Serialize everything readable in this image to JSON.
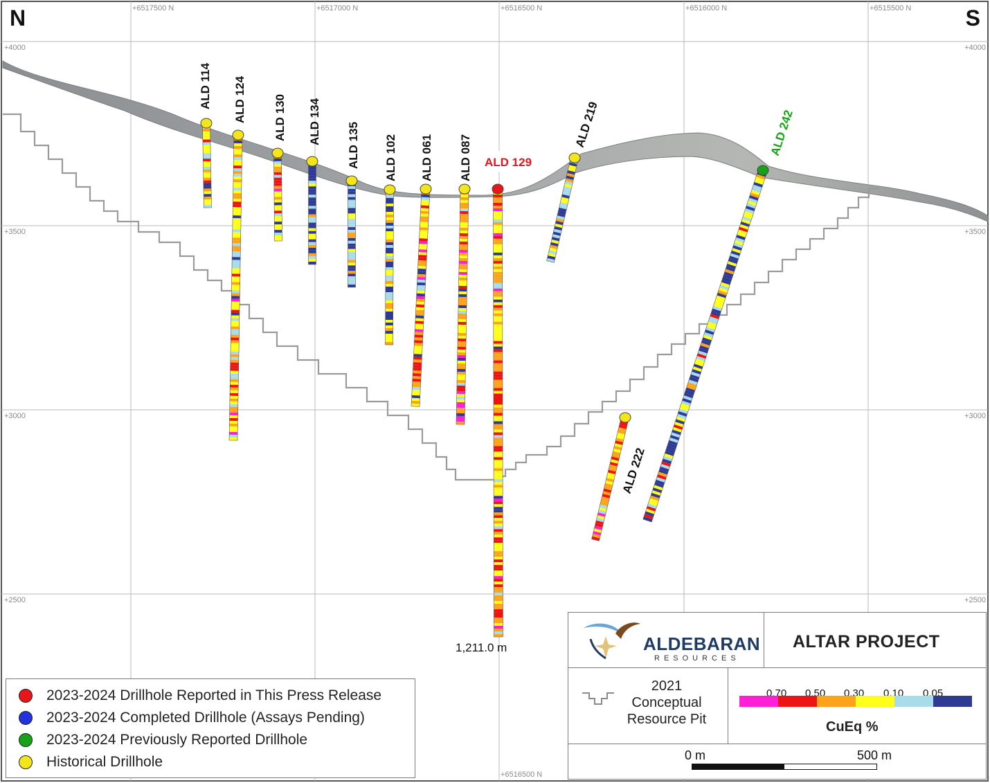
{
  "directions": {
    "north": "N",
    "south": "S"
  },
  "grid": {
    "eastings": [
      "+6517500 N",
      "+6517000 N",
      "+6516500 N",
      "+6516000 N",
      "+6515500 N"
    ],
    "bottom_easting": "+6516500 N",
    "elevations": [
      "+4000",
      "+3500",
      "+3000",
      "+2500"
    ]
  },
  "drillholes": [
    {
      "id": "ALD 114",
      "category": "historical"
    },
    {
      "id": "ALD 124",
      "category": "historical"
    },
    {
      "id": "ALD 130",
      "category": "historical"
    },
    {
      "id": "ALD 134",
      "category": "historical"
    },
    {
      "id": "ALD 135",
      "category": "historical"
    },
    {
      "id": "ALD 102",
      "category": "historical"
    },
    {
      "id": "ALD 061",
      "category": "historical"
    },
    {
      "id": "ALD 087",
      "category": "historical"
    },
    {
      "id": "ALD 129",
      "category": "reported"
    },
    {
      "id": "ALD 219",
      "category": "historical"
    },
    {
      "id": "ALD 222",
      "category": "historical"
    },
    {
      "id": "ALD 242",
      "category": "previously-reported"
    }
  ],
  "depth_annotation": "1,211.0 m",
  "legend": [
    {
      "label": "2023-2024 Drillhole Reported in This Press Release",
      "color": "#e8151b"
    },
    {
      "label": "2023-2024 Completed Drillhole (Assays Pending)",
      "color": "#2233dd"
    },
    {
      "label": "2023-2024 Previously Reported Drillhole",
      "color": "#17a317"
    },
    {
      "label": "Historical Drillhole",
      "color": "#f2e51a"
    }
  ],
  "title_block": {
    "company": "ALDEBARAN",
    "company_sub": "RESOURCES",
    "project": "ALTAR PROJECT",
    "pit_label": [
      "2021",
      "Conceptual",
      "Resource Pit"
    ],
    "grade_scale": {
      "title": "CuEq %",
      "thresholds": [
        "0.70",
        "0.50",
        "0.30",
        "0.10",
        "0.05"
      ],
      "colors": [
        "#ff1fd6",
        "#ee1414",
        "#ffa31a",
        "#ffff1a",
        "#a8dcea",
        "#2f3a94"
      ]
    },
    "scale_bar": {
      "start": "0 m",
      "end": "500 m"
    }
  },
  "colors": {
    "reported": "#e8151b",
    "previously_reported": "#17a317",
    "historical": "#f2e51a",
    "pending": "#2233dd"
  }
}
